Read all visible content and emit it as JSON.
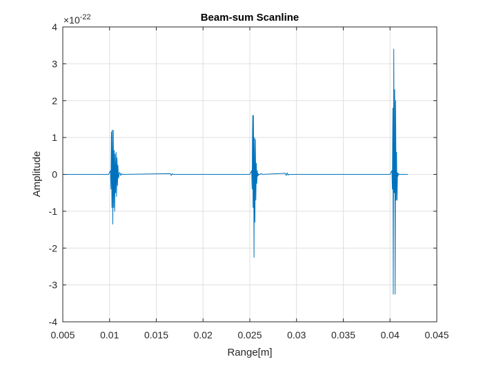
{
  "chart_data": {
    "type": "line",
    "title": "Beam-sum Scanline",
    "xlabel": "Range[m]",
    "ylabel": "Amplitude",
    "exponent": {
      "prefix": "×10",
      "power": "-22"
    },
    "xlim": [
      0.005,
      0.045
    ],
    "ylim": [
      -4,
      4
    ],
    "xticks": [
      0.005,
      0.01,
      0.015,
      0.02,
      0.025,
      0.03,
      0.035,
      0.04,
      0.045
    ],
    "xtick_labels": [
      "0.005",
      "0.01",
      "0.015",
      "0.02",
      "0.025",
      "0.03",
      "0.035",
      "0.04",
      "0.045"
    ],
    "yticks": [
      4,
      3,
      2,
      1,
      0,
      -1,
      -2,
      -3,
      -4
    ],
    "ytick_labels": [
      "4",
      "3",
      "2",
      "1",
      "0",
      "-1",
      "-2",
      "-3",
      "-4"
    ],
    "grid": true,
    "line_color": "#0072bd",
    "series": [
      {
        "x": [
          0.005,
          0.0099,
          0.0101,
          0.01015,
          0.0102,
          0.01025,
          0.0103,
          0.01035,
          0.0104,
          0.01045,
          0.0105,
          0.01055,
          0.0106,
          0.01065,
          0.0107,
          0.01075,
          0.0108,
          0.01085,
          0.0109,
          0.01095,
          0.011,
          0.01105,
          0.0111,
          0.0112,
          0.0113,
          0.0114,
          0.0116,
          0.0165,
          0.0166,
          0.0167,
          0.0168,
          0.017,
          0.025,
          0.0252,
          0.02525,
          0.0253,
          0.02535,
          0.0254,
          0.02545,
          0.0255,
          0.02555,
          0.0256,
          0.02565,
          0.0257,
          0.02575,
          0.0258,
          0.02585,
          0.0259,
          0.02595,
          0.026,
          0.0261,
          0.0262,
          0.0264,
          0.0288,
          0.0289,
          0.029,
          0.0291,
          0.0292,
          0.04,
          0.0402,
          0.04025,
          0.0403,
          0.04035,
          0.0404,
          0.04045,
          0.0405,
          0.04055,
          0.0406,
          0.04065,
          0.0407,
          0.04075,
          0.0408,
          0.04085,
          0.0409,
          0.041,
          0.0412,
          0.0419
        ],
        "y": [
          0,
          0,
          0.1,
          -0.4,
          1.15,
          -0.9,
          1.2,
          -1.35,
          1.2,
          -0.9,
          0.65,
          -1.0,
          0.55,
          -0.5,
          0.6,
          -0.6,
          0.45,
          -0.3,
          0.25,
          -0.1,
          -0.05,
          0.05,
          0.05,
          -0.03,
          0.02,
          0,
          0,
          0.02,
          -0.03,
          0.02,
          0,
          0,
          0,
          0.1,
          -0.4,
          1.6,
          -0.9,
          1.6,
          -2.25,
          1.0,
          -1.3,
          0.95,
          -0.7,
          0.3,
          -0.25,
          0.1,
          -0.05,
          0.02,
          -0.02,
          0,
          0,
          0.02,
          0,
          0.03,
          -0.03,
          0.04,
          -0.02,
          0,
          0,
          0.1,
          -0.4,
          1.8,
          -3.25,
          3.4,
          -0.5,
          2.3,
          -3.25,
          2.0,
          -0.7,
          0.6,
          -0.7,
          0.05,
          -0.05,
          0.02,
          0,
          0,
          0
        ]
      }
    ]
  }
}
